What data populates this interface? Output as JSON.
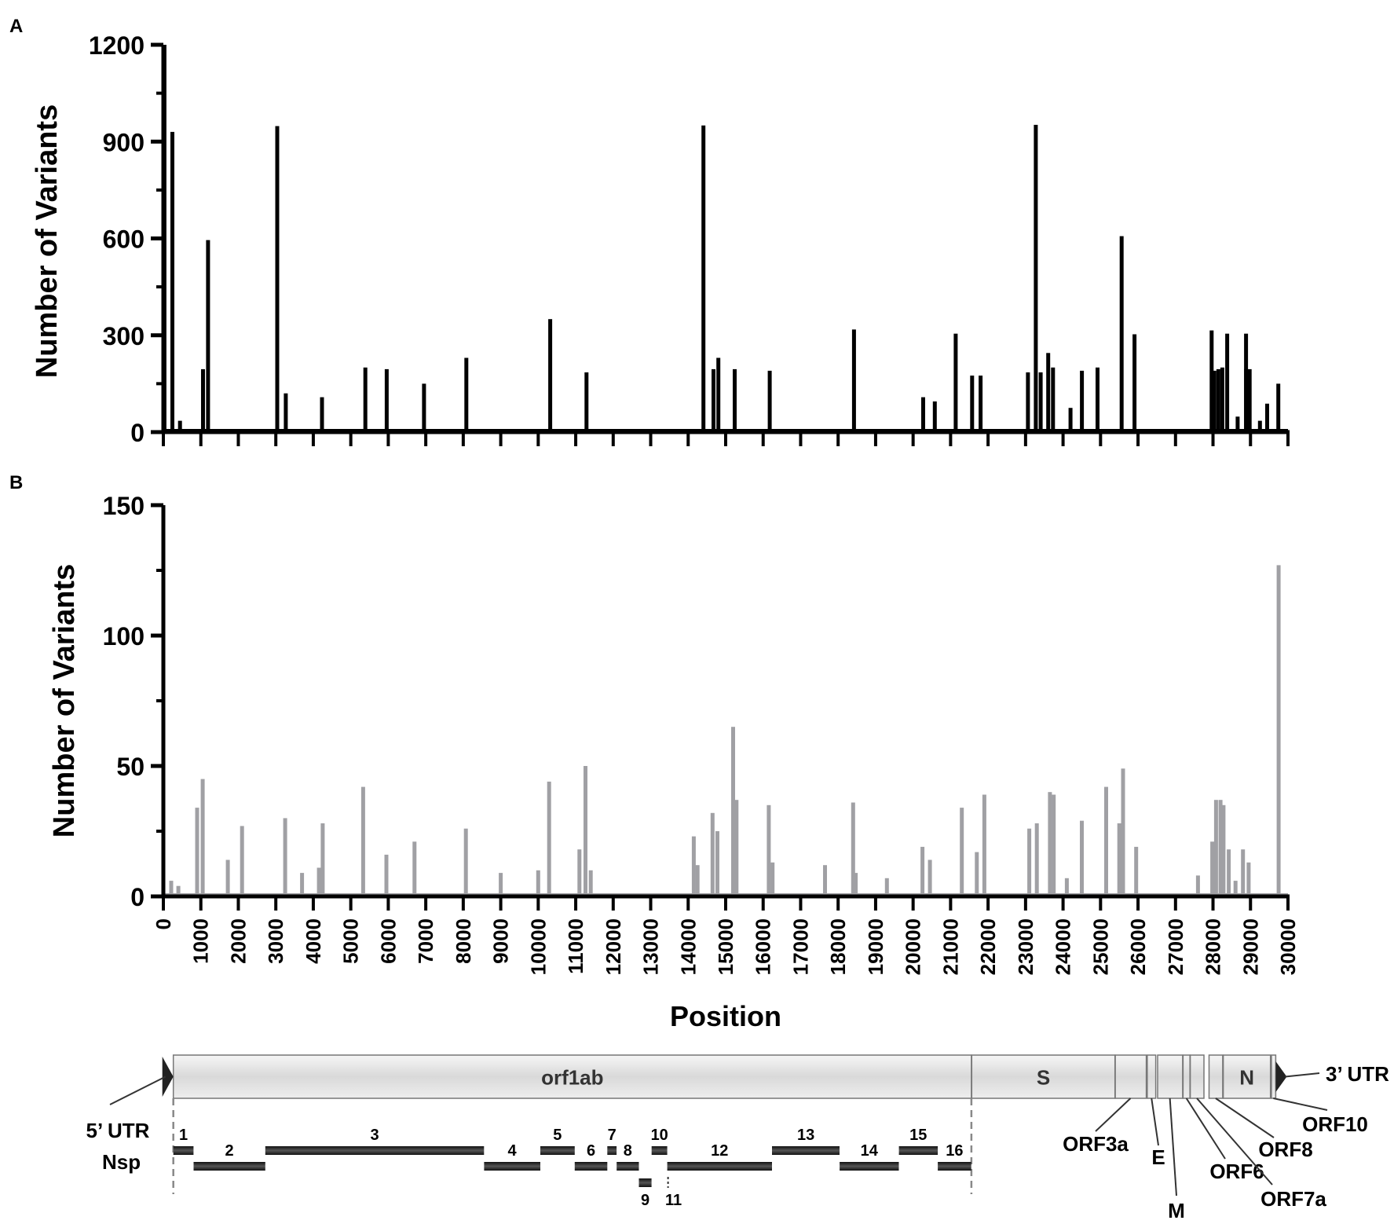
{
  "chart_data": [
    {
      "panel_label": "A",
      "type": "bar",
      "ylabel": "Number of Variants",
      "ylim": [
        0,
        1200
      ],
      "yticks": [
        0,
        300,
        600,
        900,
        1200
      ],
      "xlim": [
        0,
        30000
      ],
      "x_tick_values": [
        0,
        1000,
        2000,
        3000,
        4000,
        5000,
        6000,
        7000,
        8000,
        9000,
        10000,
        11000,
        12000,
        13000,
        14000,
        15000,
        16000,
        17000,
        18000,
        19000,
        20000,
        21000,
        22000,
        23000,
        24000,
        25000,
        26000,
        27000,
        28000,
        29000,
        30000
      ],
      "bar_color": "#000000",
      "x": [
        30,
        241,
        445,
        1059,
        1191,
        3037,
        3267,
        4231,
        5388,
        5958,
        6954,
        8083,
        10319,
        11287,
        14408,
        14676,
        14805,
        15240,
        16176,
        18424,
        20268,
        20578,
        21137,
        21575,
        21800,
        23063,
        23272,
        23403,
        23604,
        23731,
        24198,
        24503,
        24919,
        25563,
        25907,
        27964,
        28036,
        28144,
        28249,
        28378,
        28657,
        28881,
        28883,
        28977,
        29253,
        29444,
        29742
      ],
      "values": [
        1200,
        930,
        35,
        195,
        595,
        948,
        120,
        108,
        200,
        195,
        150,
        230,
        350,
        185,
        950,
        195,
        230,
        195,
        190,
        318,
        108,
        95,
        305,
        175,
        175,
        185,
        952,
        185,
        245,
        200,
        75,
        190,
        200,
        607,
        303,
        315,
        190,
        195,
        200,
        305,
        48,
        305,
        195,
        195,
        35,
        88,
        150
      ]
    },
    {
      "panel_label": "B",
      "type": "bar",
      "ylabel": "Number of Variants",
      "xlabel": "Position",
      "ylim": [
        0,
        150
      ],
      "yticks": [
        0,
        50,
        100,
        150
      ],
      "xlim": [
        0,
        30000
      ],
      "x_tick_values": [
        0,
        1000,
        2000,
        3000,
        4000,
        5000,
        6000,
        7000,
        8000,
        9000,
        10000,
        11000,
        12000,
        13000,
        14000,
        15000,
        16000,
        17000,
        18000,
        19000,
        20000,
        21000,
        22000,
        23000,
        24000,
        25000,
        26000,
        27000,
        28000,
        29000,
        30000
      ],
      "x_tick_labels": [
        "0",
        "1000",
        "2000",
        "3000",
        "4000",
        "5000",
        "6000",
        "7000",
        "8000",
        "9000",
        "10000",
        "11000",
        "12000",
        "13000",
        "14000",
        "15000",
        "16000",
        "17000",
        "18000",
        "19000",
        "20000",
        "21000",
        "22000",
        "23000",
        "24000",
        "25000",
        "26000",
        "27000",
        "28000",
        "29000",
        "30000"
      ],
      "bar_color": "#a0a0a4",
      "x": [
        210,
        400,
        900,
        1050,
        1720,
        2100,
        3250,
        3700,
        4150,
        4250,
        5330,
        5950,
        6700,
        8070,
        9000,
        10000,
        10290,
        11100,
        11260,
        11400,
        14150,
        14250,
        14650,
        14780,
        15200,
        15290,
        16150,
        16250,
        17650,
        18400,
        18470,
        19300,
        20250,
        20450,
        21300,
        21700,
        21900,
        23100,
        23300,
        23650,
        23750,
        24100,
        24500,
        25150,
        25500,
        25550,
        25600,
        25950,
        27600,
        27980,
        28080,
        28200,
        28280,
        28420,
        28600,
        28800,
        28950,
        29750
      ],
      "values": [
        6,
        4,
        34,
        45,
        14,
        27,
        30,
        9,
        11,
        28,
        42,
        16,
        21,
        26,
        9,
        10,
        44,
        18,
        50,
        10,
        23,
        12,
        32,
        25,
        65,
        37,
        35,
        13,
        12,
        36,
        9,
        7,
        19,
        14,
        34,
        17,
        39,
        26,
        28,
        40,
        39,
        7,
        29,
        42,
        28,
        28,
        49,
        19,
        8,
        21,
        37,
        37,
        35,
        18,
        6,
        18,
        13,
        127
      ]
    },
    {
      "type": "genome_map",
      "genes": [
        {
          "name": "orf1ab",
          "start": 266,
          "end": 21555
        },
        {
          "name": "S",
          "start": 21563,
          "end": 25384
        },
        {
          "name": "",
          "start": 25393,
          "end": 26220
        },
        {
          "name": "",
          "start": 26245,
          "end": 26472
        },
        {
          "name": "",
          "start": 26523,
          "end": 27191
        },
        {
          "name": "",
          "start": 27202,
          "end": 27387
        },
        {
          "name": "",
          "start": 27394,
          "end": 27759
        },
        {
          "name": "",
          "start": 27894,
          "end": 28259
        },
        {
          "name": "N",
          "start": 28274,
          "end": 29533
        },
        {
          "name": "",
          "start": 29558,
          "end": 29674
        }
      ],
      "utr_labels": [
        "5’ UTR",
        "3’ UTR"
      ],
      "callouts": [
        {
          "label": "ORF3a",
          "gene_x": 25800
        },
        {
          "label": "E",
          "gene_x": 26360
        },
        {
          "label": "M",
          "gene_x": 26850
        },
        {
          "label": "ORF6",
          "gene_x": 27290
        },
        {
          "label": "ORF7a",
          "gene_x": 27570
        },
        {
          "label": "ORF8",
          "gene_x": 28070
        },
        {
          "label": "ORF10",
          "gene_x": 29610
        }
      ],
      "nsp_label": "Nsp",
      "nsp": [
        {
          "label": "1",
          "start": 266,
          "end": 805,
          "row": 0
        },
        {
          "label": "2",
          "start": 806,
          "end": 2719,
          "row": 1
        },
        {
          "label": "3",
          "start": 2720,
          "end": 8554,
          "row": 0
        },
        {
          "label": "4",
          "start": 8555,
          "end": 10054,
          "row": 1
        },
        {
          "label": "5",
          "start": 10055,
          "end": 10972,
          "row": 0
        },
        {
          "label": "6",
          "start": 10973,
          "end": 11842,
          "row": 1
        },
        {
          "label": "7",
          "start": 11843,
          "end": 12091,
          "row": 0
        },
        {
          "label": "8",
          "start": 12092,
          "end": 12685,
          "row": 1
        },
        {
          "label": "9",
          "start": 12686,
          "end": 13024,
          "row": 2
        },
        {
          "label": "10",
          "start": 13025,
          "end": 13441,
          "row": 0
        },
        {
          "label": "11",
          "start": 13442,
          "end": 13480,
          "row": 2
        },
        {
          "label": "12",
          "start": 13442,
          "end": 16236,
          "row": 1
        },
        {
          "label": "13",
          "start": 16237,
          "end": 18039,
          "row": 0
        },
        {
          "label": "14",
          "start": 18040,
          "end": 19620,
          "row": 1
        },
        {
          "label": "15",
          "start": 19621,
          "end": 20658,
          "row": 0
        },
        {
          "label": "16",
          "start": 20659,
          "end": 21552,
          "row": 1
        }
      ]
    }
  ]
}
